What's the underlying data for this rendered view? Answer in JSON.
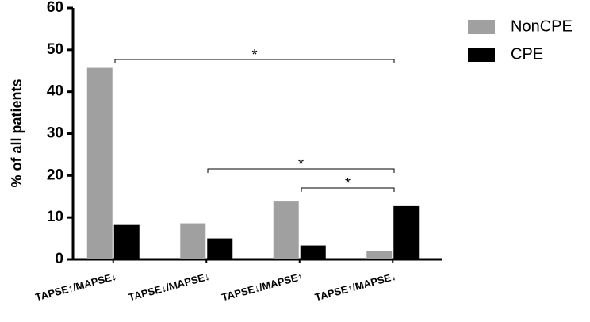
{
  "chart_data": {
    "type": "bar",
    "y_label": "% of all patients",
    "categories": [
      "TAPSE↑/MAPSE↓",
      "TAPSE↓/MAPSE↓",
      "TAPSE↓/MAPSE↑",
      "TAPSE↑/MAPSE↓"
    ],
    "series": [
      {
        "name": "NonCPE",
        "color": "#a0a0a0",
        "values": [
          45.7,
          8.6,
          13.8,
          1.9
        ]
      },
      {
        "name": "CPE",
        "color": "#000000",
        "values": [
          8.2,
          5.0,
          3.3,
          12.7
        ]
      }
    ],
    "ylim": [
      0,
      60
    ],
    "yticks": [
      0,
      10,
      20,
      30,
      40,
      50,
      60
    ],
    "legend": "top-right",
    "annotations": [
      "*",
      "*",
      "*"
    ]
  }
}
